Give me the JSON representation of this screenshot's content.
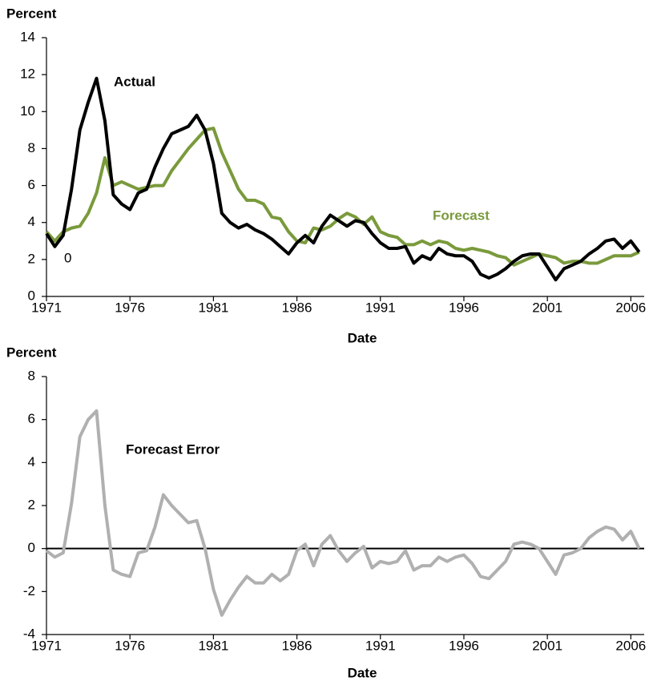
{
  "chart_data": [
    {
      "type": "line",
      "y_label": "Percent",
      "x_label": "Date",
      "annotations": [
        "Actual",
        "Forecast",
        "0"
      ],
      "xlim": [
        1971,
        2006.8
      ],
      "xticks": [
        1971,
        1976,
        1981,
        1986,
        1991,
        1996,
        2001,
        2006
      ],
      "ylim": [
        0,
        14
      ],
      "yticks": [
        0,
        2,
        4,
        6,
        8,
        10,
        12,
        14
      ],
      "x": [
        1971,
        1971.5,
        1972,
        1972.5,
        1973,
        1973.5,
        1974,
        1974.5,
        1975,
        1975.5,
        1976,
        1976.5,
        1977,
        1977.5,
        1978,
        1978.5,
        1979,
        1979.5,
        1980,
        1980.5,
        1981,
        1981.5,
        1982,
        1982.5,
        1983,
        1983.5,
        1984,
        1984.5,
        1985,
        1985.5,
        1986,
        1986.5,
        1987,
        1987.5,
        1988,
        1988.5,
        1989,
        1989.5,
        1990,
        1990.5,
        1991,
        1991.5,
        1992,
        1992.5,
        1993,
        1993.5,
        1994,
        1994.5,
        1995,
        1995.5,
        1996,
        1996.5,
        1997,
        1997.5,
        1998,
        1998.5,
        1999,
        1999.5,
        2000,
        2000.5,
        2001,
        2001.5,
        2002,
        2002.5,
        2003,
        2003.5,
        2004,
        2004.5,
        2005,
        2005.5,
        2006,
        2006.5
      ],
      "series": [
        {
          "color": "#7a9a3c",
          "values": [
            3.5,
            3.0,
            3.5,
            3.7,
            3.8,
            4.5,
            5.6,
            7.5,
            6.0,
            6.2,
            6.0,
            5.8,
            5.9,
            6.0,
            6.0,
            6.8,
            7.4,
            8.0,
            8.5,
            9.0,
            9.1,
            7.8,
            6.8,
            5.8,
            5.2,
            5.2,
            5.0,
            4.3,
            4.2,
            3.5,
            3.0,
            2.9,
            3.7,
            3.6,
            3.8,
            4.2,
            4.5,
            4.3,
            3.9,
            4.3,
            3.5,
            3.3,
            3.2,
            2.8,
            2.8,
            3.0,
            2.8,
            3.0,
            2.9,
            2.6,
            2.5,
            2.6,
            2.5,
            2.4,
            2.2,
            2.1,
            1.7,
            1.9,
            2.1,
            2.3,
            2.2,
            2.1,
            1.8,
            1.9,
            1.9,
            1.8,
            1.8,
            2.0,
            2.2,
            2.2,
            2.2,
            2.4
          ]
        },
        {
          "color": "#000000",
          "values": [
            3.4,
            2.7,
            3.3,
            5.8,
            9.0,
            10.5,
            11.8,
            9.5,
            5.5,
            5.0,
            4.7,
            5.6,
            5.8,
            7.0,
            8.0,
            8.8,
            9.0,
            9.2,
            9.8,
            9.0,
            7.2,
            4.5,
            4.0,
            3.7,
            3.9,
            3.6,
            3.4,
            3.1,
            2.7,
            2.3,
            2.9,
            3.3,
            2.9,
            3.8,
            4.4,
            4.1,
            3.8,
            4.1,
            4.0,
            3.4,
            2.9,
            2.6,
            2.6,
            2.7,
            1.8,
            2.2,
            2.0,
            2.6,
            2.3,
            2.2,
            2.2,
            1.9,
            1.2,
            1.0,
            1.2,
            1.5,
            1.9,
            2.2,
            2.3,
            2.3,
            1.6,
            0.9,
            1.5,
            1.7,
            1.9,
            2.3,
            2.6,
            3.0,
            3.1,
            2.6,
            3.0,
            2.4
          ]
        }
      ]
    },
    {
      "type": "line",
      "y_label": "Percent",
      "x_label": "Date",
      "annotations": [
        "Forecast Error"
      ],
      "xlim": [
        1971,
        2006.8
      ],
      "xticks": [
        1971,
        1976,
        1981,
        1986,
        1991,
        1996,
        2001,
        2006
      ],
      "ylim": [
        -4,
        8
      ],
      "yticks": [
        -4,
        -2,
        0,
        2,
        4,
        6,
        8
      ],
      "x": [
        1971,
        1971.5,
        1972,
        1972.5,
        1973,
        1973.5,
        1974,
        1974.5,
        1975,
        1975.5,
        1976,
        1976.5,
        1977,
        1977.5,
        1978,
        1978.5,
        1979,
        1979.5,
        1980,
        1980.5,
        1981,
        1981.5,
        1982,
        1982.5,
        1983,
        1983.5,
        1984,
        1984.5,
        1985,
        1985.5,
        1986,
        1986.5,
        1987,
        1987.5,
        1988,
        1988.5,
        1989,
        1989.5,
        1990,
        1990.5,
        1991,
        1991.5,
        1992,
        1992.5,
        1993,
        1993.5,
        1994,
        1994.5,
        1995,
        1995.5,
        1996,
        1996.5,
        1997,
        1997.5,
        1998,
        1998.5,
        1999,
        1999.5,
        2000,
        2000.5,
        2001,
        2001.5,
        2002,
        2002.5,
        2003,
        2003.5,
        2004,
        2004.5,
        2005,
        2005.5,
        2006,
        2006.5
      ],
      "series": [
        {
          "color": "#b0b0b0",
          "values": [
            -0.1,
            -0.4,
            -0.2,
            2.1,
            5.2,
            6.0,
            6.4,
            2.0,
            -1.0,
            -1.2,
            -1.3,
            -0.2,
            -0.1,
            1.0,
            2.5,
            2.0,
            1.6,
            1.2,
            1.3,
            0.0,
            -1.9,
            -3.1,
            -2.4,
            -1.8,
            -1.3,
            -1.6,
            -1.6,
            -1.2,
            -1.5,
            -1.2,
            -0.1,
            0.2,
            -0.8,
            0.2,
            0.6,
            -0.1,
            -0.6,
            -0.2,
            0.1,
            -0.9,
            -0.6,
            -0.7,
            -0.6,
            -0.1,
            -1.0,
            -0.8,
            -0.8,
            -0.4,
            -0.6,
            -0.4,
            -0.3,
            -0.7,
            -1.3,
            -1.4,
            -1.0,
            -0.6,
            0.2,
            0.3,
            0.2,
            0.0,
            -0.6,
            -1.2,
            -0.3,
            -0.2,
            0.0,
            0.5,
            0.8,
            1.0,
            0.9,
            0.4,
            0.8,
            0.0
          ]
        }
      ]
    }
  ]
}
